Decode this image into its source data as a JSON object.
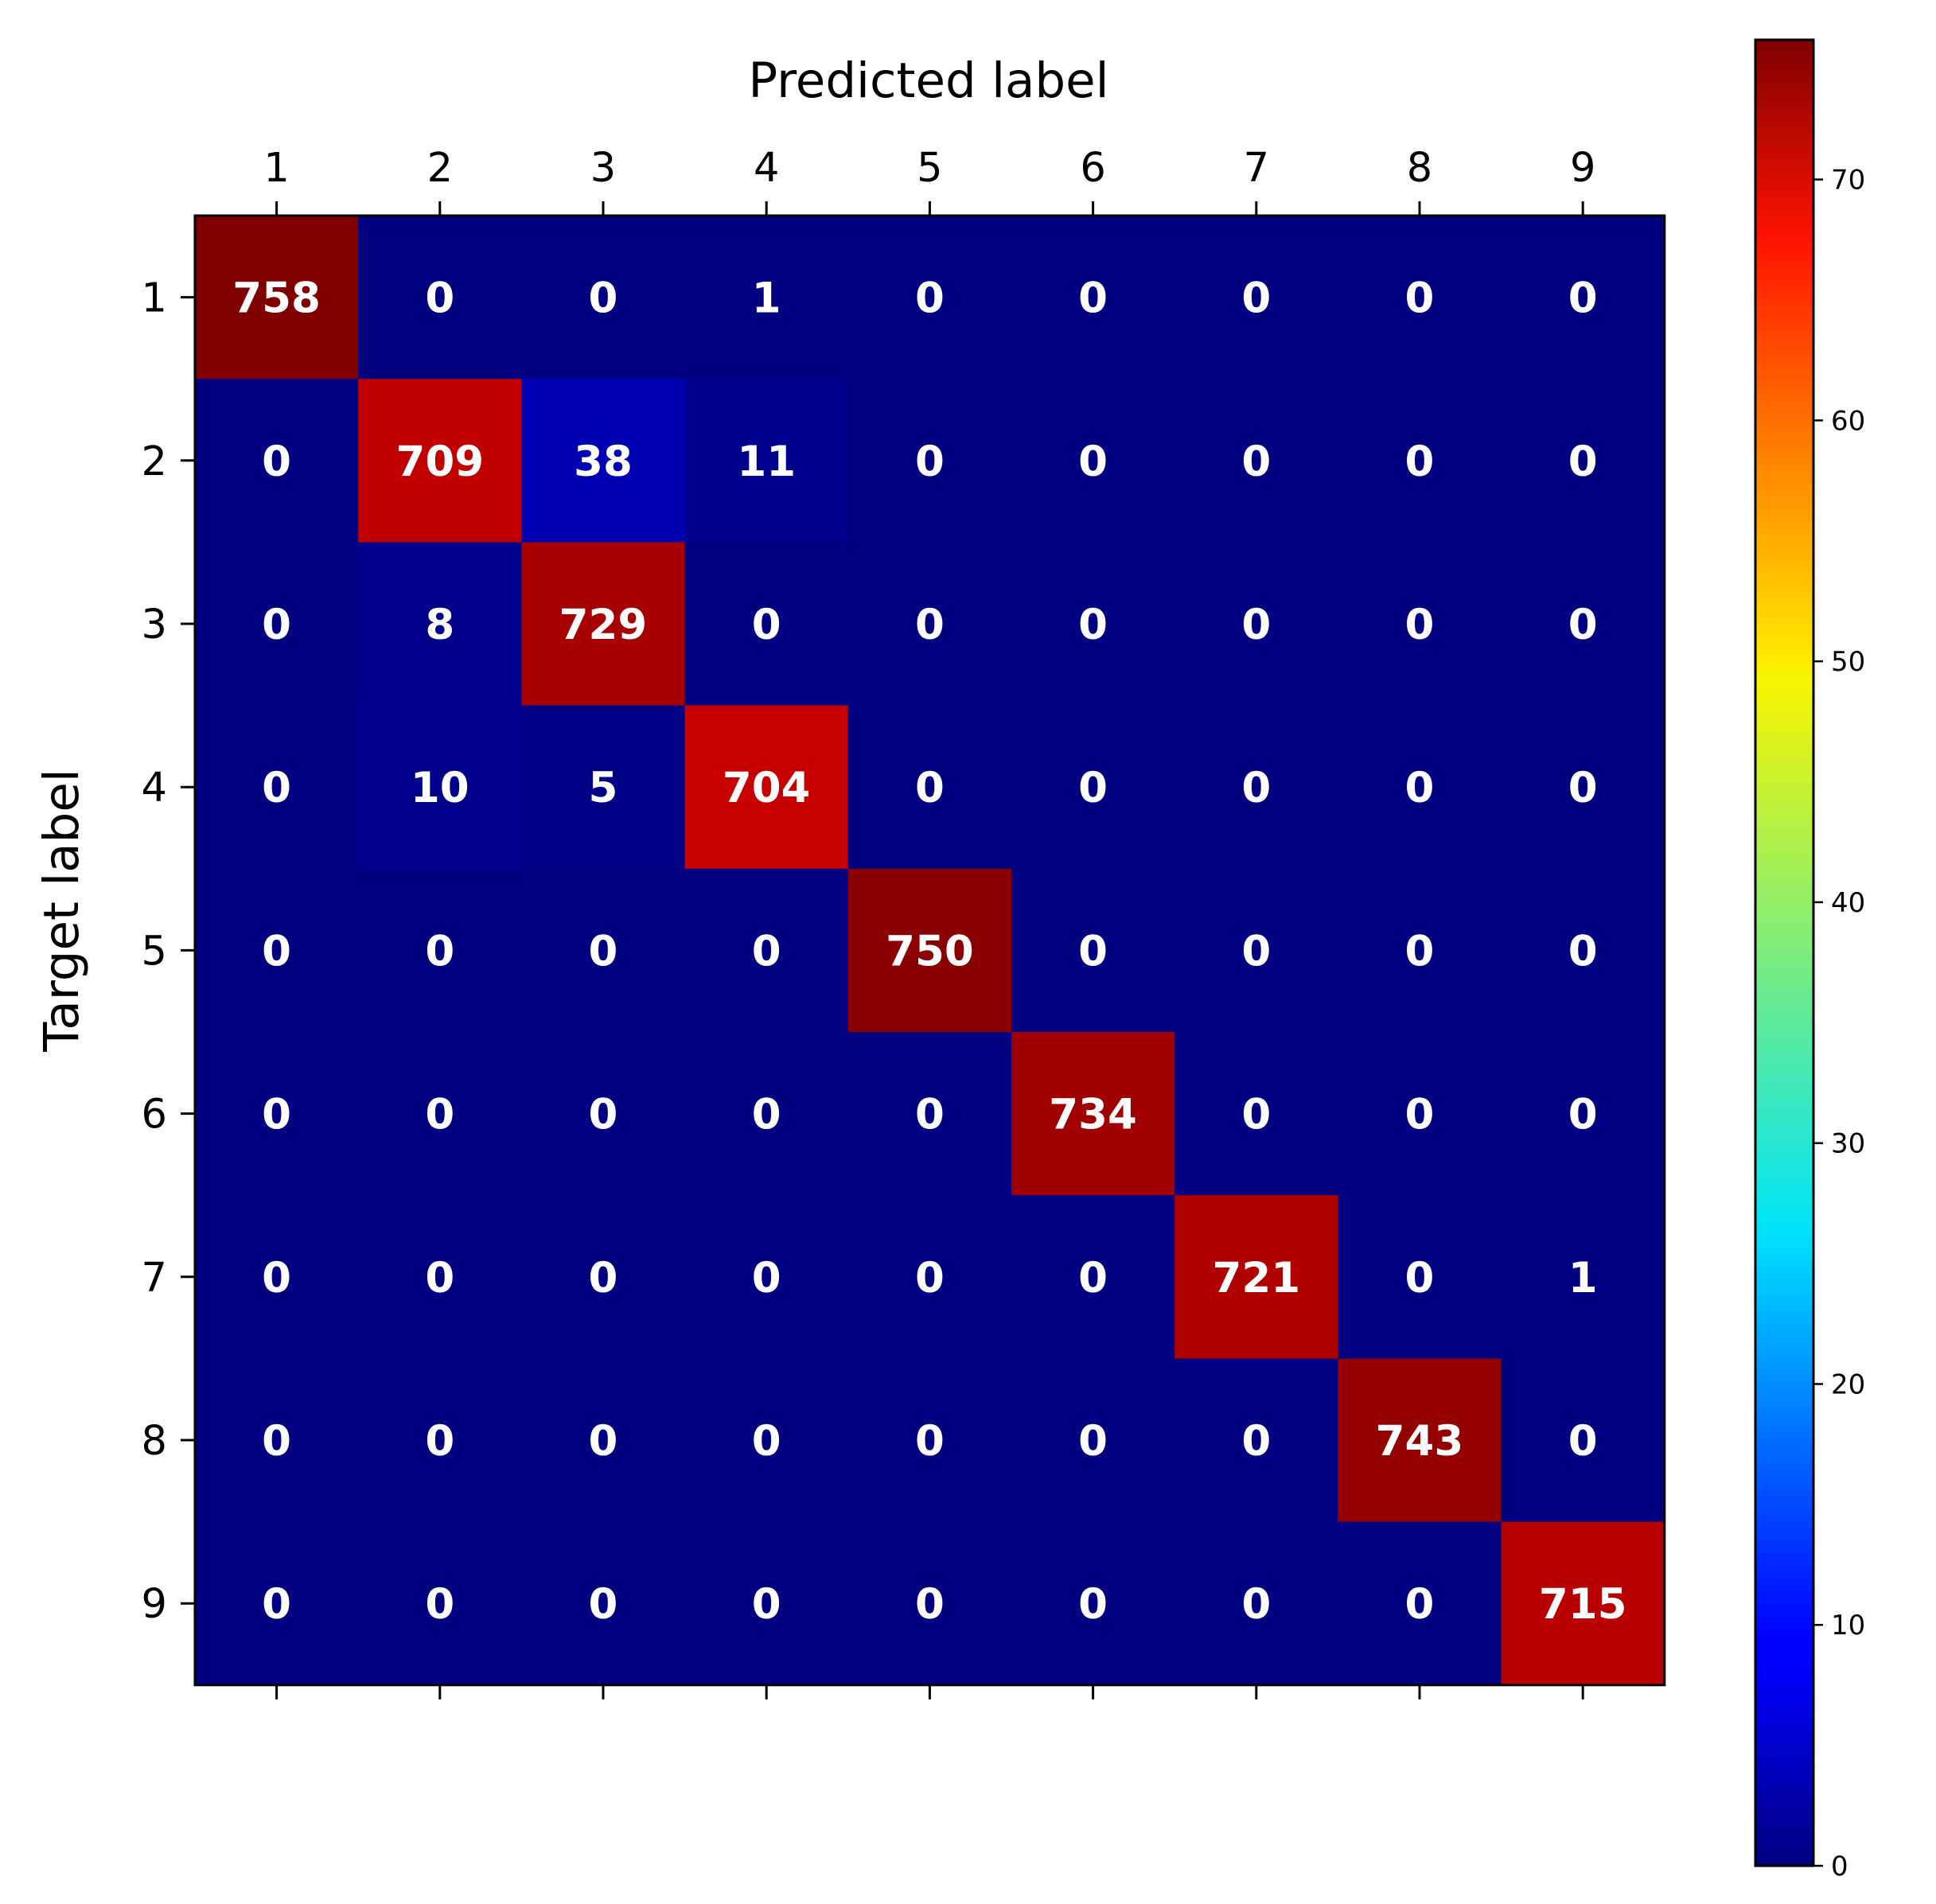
{
  "chart_data": {
    "type": "heatmap",
    "title": "",
    "xlabel": "Predicted label",
    "ylabel": "Target label",
    "x_categories": [
      "1",
      "2",
      "3",
      "4",
      "5",
      "6",
      "7",
      "8",
      "9"
    ],
    "y_categories": [
      "1",
      "2",
      "3",
      "4",
      "5",
      "6",
      "7",
      "8",
      "9"
    ],
    "matrix": [
      [
        758,
        0,
        0,
        1,
        0,
        0,
        0,
        0,
        0
      ],
      [
        0,
        709,
        38,
        11,
        0,
        0,
        0,
        0,
        0
      ],
      [
        0,
        8,
        729,
        0,
        0,
        0,
        0,
        0,
        0
      ],
      [
        0,
        10,
        5,
        704,
        0,
        0,
        0,
        0,
        0
      ],
      [
        0,
        0,
        0,
        0,
        750,
        0,
        0,
        0,
        0
      ],
      [
        0,
        0,
        0,
        0,
        0,
        734,
        0,
        0,
        0
      ],
      [
        0,
        0,
        0,
        0,
        0,
        0,
        721,
        0,
        1
      ],
      [
        0,
        0,
        0,
        0,
        0,
        0,
        0,
        743,
        0
      ],
      [
        0,
        0,
        0,
        0,
        0,
        0,
        0,
        0,
        715
      ]
    ],
    "colormap": "jet",
    "colorbar": {
      "ticks": [
        "0",
        "10",
        "20",
        "30",
        "40",
        "50",
        "60",
        "70"
      ],
      "range": [
        0,
        75.8
      ]
    },
    "x_axis_position": "top",
    "grid": false,
    "cell_text_color": "#ffffff"
  }
}
